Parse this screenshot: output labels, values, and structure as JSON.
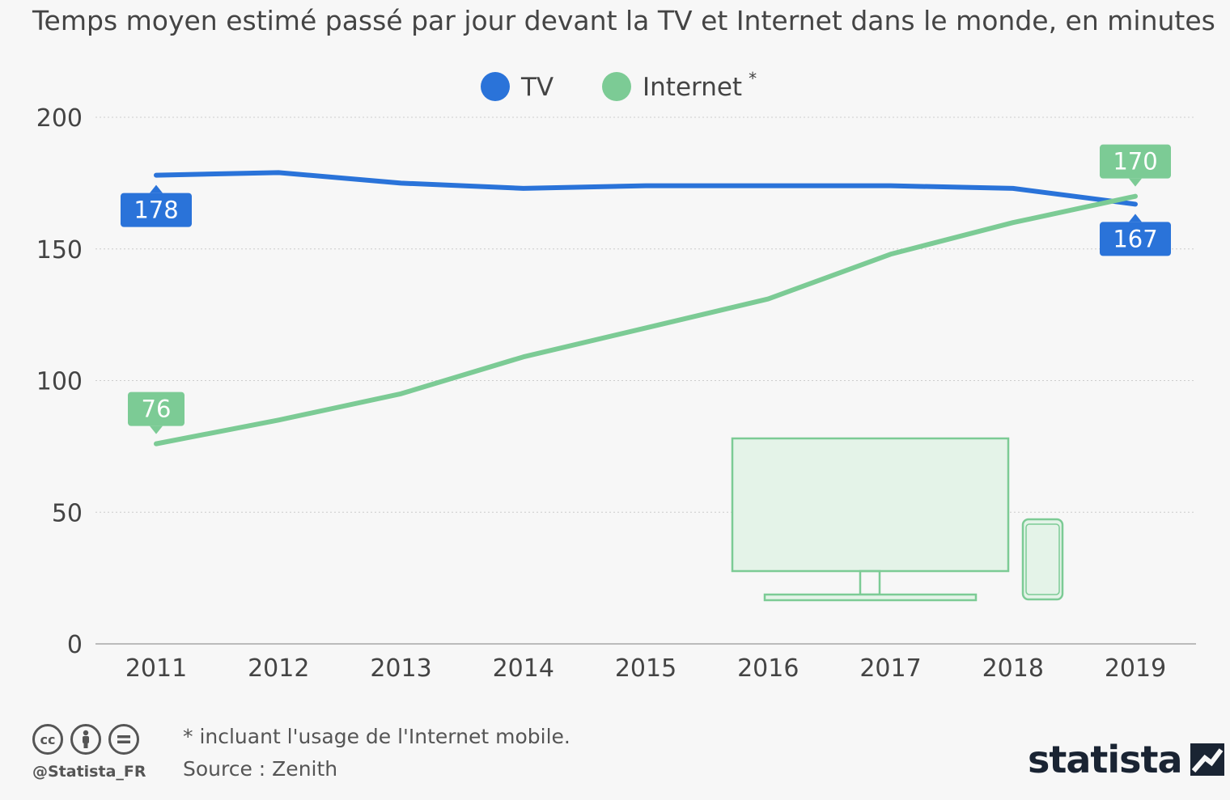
{
  "subtitle": "Temps moyen estimé passé par jour devant la TV et Internet dans le monde, en minutes",
  "chart_data": {
    "type": "line",
    "x": [
      2011,
      2012,
      2013,
      2014,
      2015,
      2016,
      2017,
      2018,
      2019
    ],
    "ylim": [
      0,
      200
    ],
    "yticks": [
      0,
      50,
      100,
      150,
      200
    ],
    "grid": true,
    "legend_position": "top",
    "series": [
      {
        "name": "TV",
        "marker": "",
        "color": "#2a73d9",
        "values": [
          178,
          179,
          175,
          173,
          174,
          174,
          174,
          173,
          167
        ]
      },
      {
        "name": "Internet",
        "marker": "*",
        "color": "#7ccb95",
        "values": [
          76,
          85,
          95,
          109,
          120,
          131,
          148,
          160,
          170
        ]
      }
    ],
    "annotations": [
      {
        "series": 0,
        "index": 0,
        "text": "178",
        "position": "below"
      },
      {
        "series": 0,
        "index": 8,
        "text": "167",
        "position": "below"
      },
      {
        "series": 1,
        "index": 0,
        "text": "76",
        "position": "above"
      },
      {
        "series": 1,
        "index": 8,
        "text": "170",
        "position": "above"
      }
    ]
  },
  "icons": [
    "tv-illustration-icon",
    "smartphone-illustration-icon",
    "creative-commons-icon",
    "attribution-icon",
    "no-derivatives-icon",
    "statista-logo-icon"
  ],
  "footer": {
    "note": "* incluant l'usage de l'Internet mobile.",
    "source": "Source : Zenith",
    "handle": "@Statista_FR",
    "brand": "statista"
  }
}
